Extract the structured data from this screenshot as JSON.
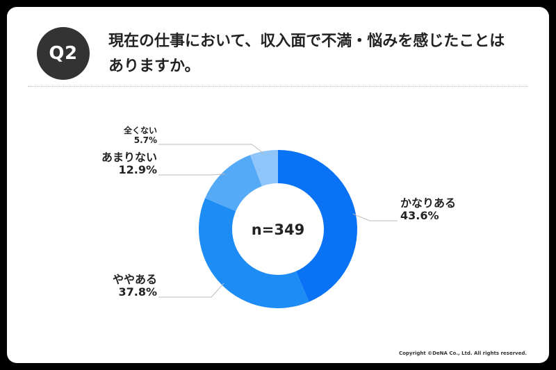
{
  "badge": "Q2",
  "question_line1": "現在の仕事において、収入面で不満・悩みを感じたことは",
  "question_line2": "ありますか。",
  "copyright": "Copyright ©DeNA Co., Ltd. All rights reserved.",
  "chart_data": {
    "type": "pie",
    "donut": true,
    "center_label": "n=349",
    "slices": [
      {
        "label": "かなりある",
        "value": 43.6,
        "value_label": "43.6%",
        "color": "#0a73f5"
      },
      {
        "label": "ややある",
        "value": 37.8,
        "value_label": "37.8%",
        "color": "#1e8cf5"
      },
      {
        "label": "あまりない",
        "value": 12.9,
        "value_label": "12.9%",
        "color": "#55aaf7"
      },
      {
        "label": "全くない",
        "value": 5.7,
        "value_label": "5.7%",
        "color": "#8fc5f9"
      }
    ]
  }
}
